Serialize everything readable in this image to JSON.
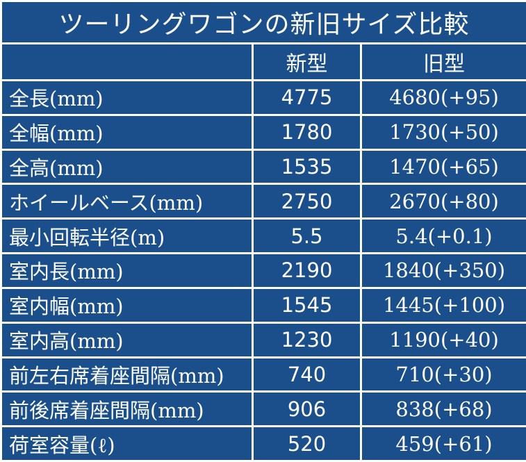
{
  "table": {
    "title": "ツーリングワゴンの新旧サイズ比較",
    "headers": [
      "",
      "新型",
      "旧型"
    ],
    "rows": [
      {
        "label": "全長(mm)",
        "new": "4775",
        "old": "4680(+95)"
      },
      {
        "label": "全幅(mm)",
        "new": "1780",
        "old": "1730(+50)"
      },
      {
        "label": "全高(mm)",
        "new": "1535",
        "old": "1470(+65)"
      },
      {
        "label": "ホイールベース(mm)",
        "new": "2750",
        "old": "2670(+80)"
      },
      {
        "label": "最小回転半径(m)",
        "new": "5.5",
        "old": "5.4(+0.1)"
      },
      {
        "label": "室内長(mm)",
        "new": "2190",
        "old": "1840(+350)"
      },
      {
        "label": "室内幅(mm)",
        "new": "1545",
        "old": "1445(+100)"
      },
      {
        "label": "室内高(mm)",
        "new": "1230",
        "old": "1190(+40)"
      },
      {
        "label": "前左右席着座間隔(mm)",
        "new": "740",
        "old": "710(+30)"
      },
      {
        "label": "前後席着座間隔(mm)",
        "new": "906",
        "old": "838(+68)"
      },
      {
        "label": "荷室容量(ℓ)",
        "new": "520",
        "old": "459(+61)"
      }
    ]
  },
  "colors": {
    "cell_background": "#1b4f8c",
    "text": "#ffffff",
    "grid_lines": "#ffffff"
  }
}
